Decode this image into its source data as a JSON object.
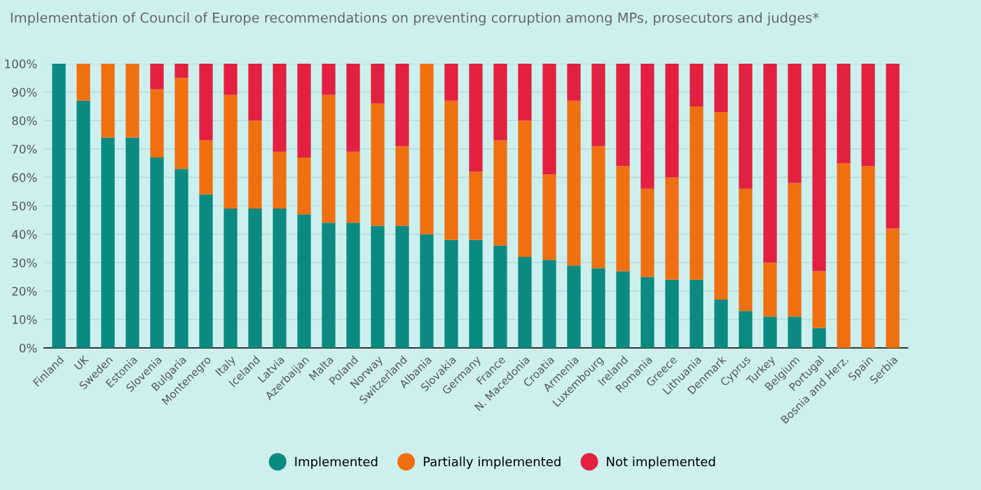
{
  "chart_data": {
    "type": "bar",
    "stacked": true,
    "title": "Implementation of Council of Europe recommendations on preventing corruption among MPs, prosecutors and judges*",
    "categories": [
      "Finland",
      "UK",
      "Sweden",
      "Estonia",
      "Slovenia",
      "Bulgaria",
      "Montenegro",
      "Italy",
      "Iceland",
      "Latvia",
      "Azerbaijan",
      "Malta",
      "Poland",
      "Norway",
      "Switzerland",
      "Albania",
      "Slovakia",
      "Germany",
      "France",
      "N. Macedonia",
      "Croatia",
      "Armenia",
      "Luxembourg",
      "Ireland",
      "Romania",
      "Greece",
      "Lithuania",
      "Denmark",
      "Cyprus",
      "Turkey",
      "Belgium",
      "Portugal",
      "Bosnia and Herz.",
      "Spain",
      "Serbia"
    ],
    "series": [
      {
        "name": "Implemented",
        "color": "#0a8a80",
        "values": [
          100,
          87,
          74,
          74,
          67,
          63,
          54,
          49,
          49,
          49,
          47,
          44,
          44,
          43,
          43,
          40,
          38,
          38,
          36,
          32,
          31,
          29,
          28,
          27,
          25,
          24,
          24,
          17,
          13,
          11,
          11,
          7,
          0,
          0,
          0
        ]
      },
      {
        "name": "Partially implemented",
        "color": "#f07010",
        "values": [
          0,
          13,
          26,
          26,
          24,
          32,
          19,
          40,
          31,
          20,
          20,
          45,
          25,
          43,
          28,
          60,
          49,
          24,
          37,
          48,
          30,
          58,
          43,
          37,
          31,
          36,
          61,
          66,
          43,
          19,
          47,
          20,
          65,
          64,
          42
        ]
      },
      {
        "name": "Not implemented",
        "color": "#e3203f",
        "values": [
          0,
          0,
          0,
          0,
          9,
          5,
          27,
          11,
          20,
          31,
          33,
          11,
          31,
          14,
          29,
          0,
          13,
          38,
          27,
          20,
          39,
          13,
          29,
          36,
          44,
          40,
          15,
          17,
          44,
          70,
          42,
          73,
          35,
          36,
          58
        ]
      }
    ],
    "ylim": [
      0,
      100
    ],
    "yticks": [
      {
        "value": 0,
        "label": "0%"
      },
      {
        "value": 10,
        "label": "10%"
      },
      {
        "value": 20,
        "label": "20%"
      },
      {
        "value": 30,
        "label": "30%"
      },
      {
        "value": 40,
        "label": "40%"
      },
      {
        "value": 50,
        "label": "50%"
      },
      {
        "value": 60,
        "label": "60%"
      },
      {
        "value": 70,
        "label": "70%"
      },
      {
        "value": 80,
        "label": "80%"
      },
      {
        "value": 90,
        "label": "90%"
      },
      {
        "value": 100,
        "label": "100%"
      }
    ],
    "grid": "y",
    "legend": "bottom"
  }
}
